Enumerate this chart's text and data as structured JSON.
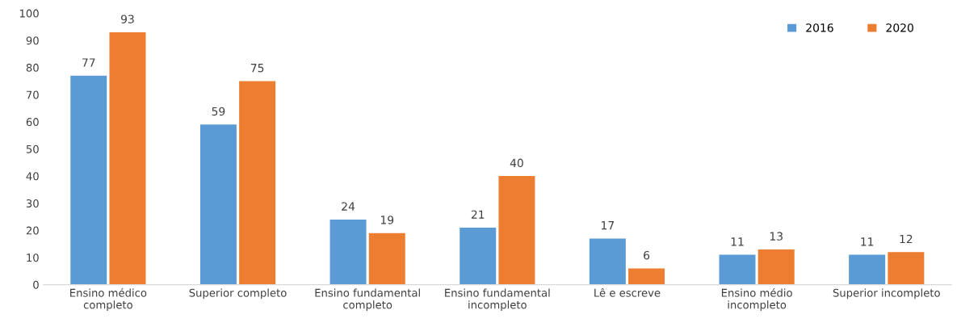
{
  "chart_data": {
    "type": "bar",
    "categories": [
      "Ensino médico completo",
      "Superior completo",
      "Ensino fundamental completo",
      "Ensino fundamental incompleto",
      "Lê e escreve",
      "Ensino médio incompleto",
      "Superior incompleto"
    ],
    "series": [
      {
        "name": "2016",
        "color": "#5b9bd5",
        "values": [
          77,
          59,
          24,
          21,
          17,
          11,
          11
        ]
      },
      {
        "name": "2020",
        "color": "#ed7d31",
        "values": [
          93,
          75,
          19,
          40,
          6,
          13,
          12
        ]
      }
    ],
    "ylim": [
      0,
      100
    ],
    "yticks": [
      0,
      10,
      20,
      30,
      40,
      50,
      60,
      70,
      80,
      90,
      100
    ],
    "data_labels": true,
    "grid": false,
    "legend": "top right"
  }
}
